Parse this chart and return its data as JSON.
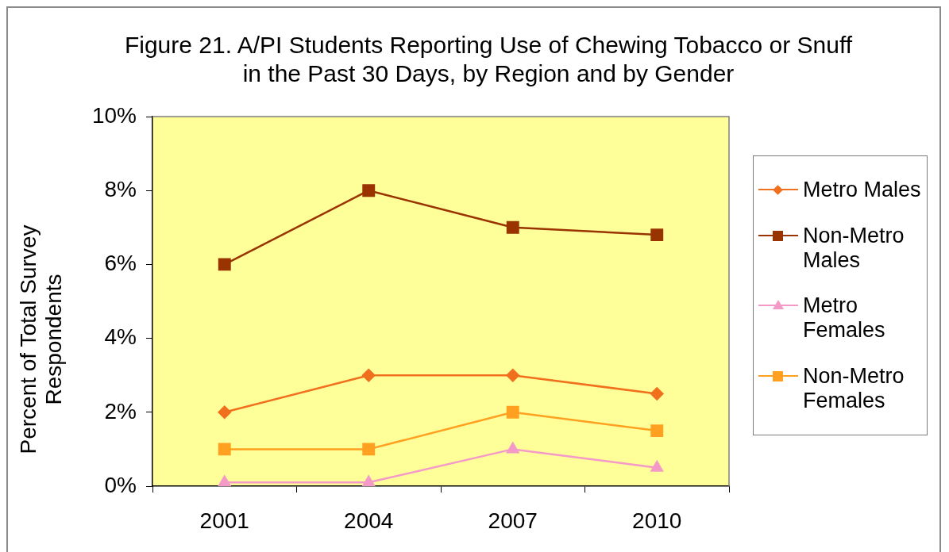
{
  "chart_data": {
    "type": "line",
    "title": "Figure 21. A/PI Students Reporting Use of Chewing Tobacco or Snuff in the Past 30 Days, by Region and by Gender",
    "ylabel": "Percent of Total Survey Respondents",
    "categories": [
      "2001",
      "2004",
      "2007",
      "2010"
    ],
    "series": [
      {
        "name": "Metro Males",
        "color": "#f0701e",
        "marker": "diamond",
        "values": [
          2,
          3,
          3,
          2.5
        ]
      },
      {
        "name": "Non-Metro Males",
        "color": "#993300",
        "marker": "square",
        "values": [
          6,
          8,
          7,
          6.8
        ]
      },
      {
        "name": "Metro Females",
        "color": "#f49ac8",
        "marker": "triangle",
        "values": [
          0.1,
          0.1,
          1,
          0.5
        ]
      },
      {
        "name": "Non-Metro Females",
        "color": "#ffa020",
        "marker": "square",
        "values": [
          1,
          1,
          2,
          1.5
        ]
      }
    ],
    "ylim": [
      0,
      10
    ],
    "yticks": [
      {
        "value": 0,
        "label": "0%"
      },
      {
        "value": 2,
        "label": "2%"
      },
      {
        "value": 4,
        "label": "4%"
      },
      {
        "value": 6,
        "label": "6%"
      },
      {
        "value": 8,
        "label": "8%"
      },
      {
        "value": 10,
        "label": "10%"
      }
    ],
    "grid": false,
    "legend": "right",
    "line_style": "solid"
  }
}
